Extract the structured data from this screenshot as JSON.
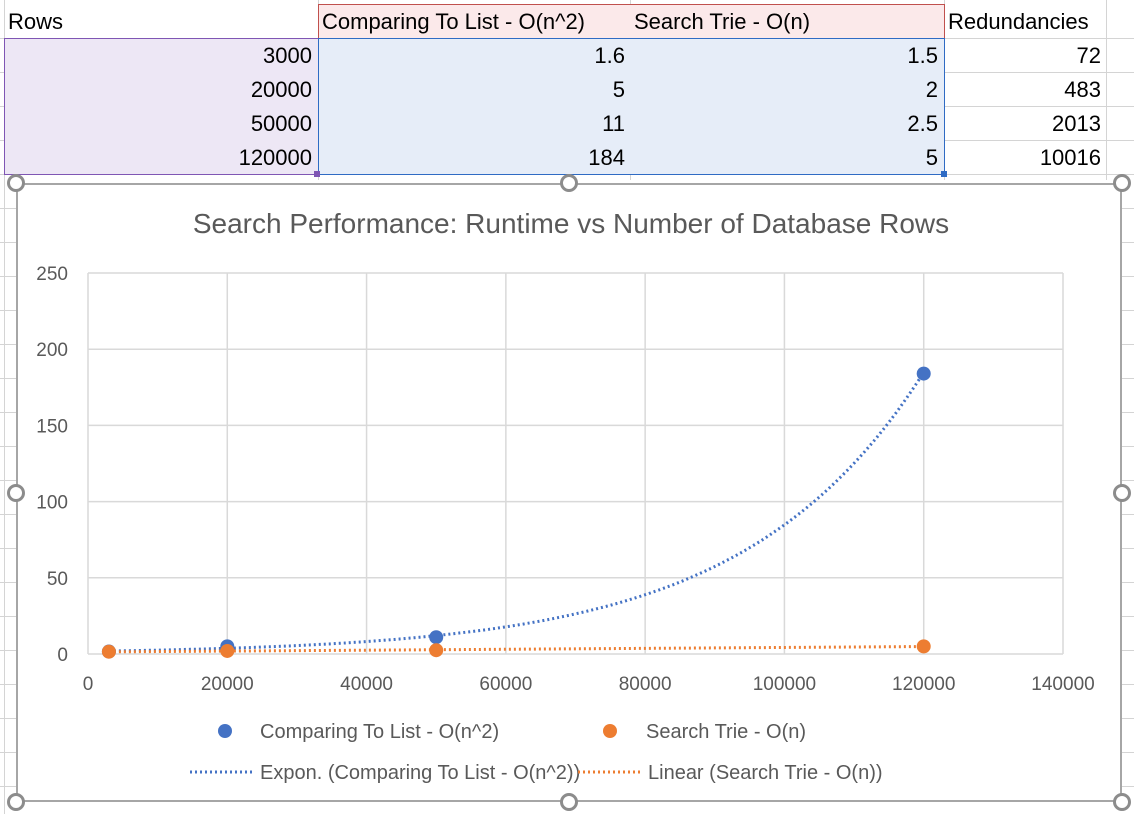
{
  "table": {
    "headers": [
      "Rows",
      "Comparing To List - O(n^2)",
      "Search Trie - O(n)",
      "Redundancies"
    ],
    "rows": [
      [
        "3000",
        "1.6",
        "1.5",
        "72"
      ],
      [
        "20000",
        "5",
        "2",
        "483"
      ],
      [
        "50000",
        "11",
        "2.5",
        "2013"
      ],
      [
        "120000",
        "184",
        "5",
        "10016"
      ]
    ]
  },
  "colors": {
    "series1": "#4472c4",
    "series2": "#ed7d31",
    "grid": "#d9d9d9",
    "text": "#595959"
  },
  "chart_data": {
    "type": "scatter",
    "title": "Search Performance: Runtime vs Number of Database Rows",
    "xlabel": "",
    "ylabel": "",
    "xlim": [
      0,
      140000
    ],
    "ylim": [
      0,
      250
    ],
    "x_ticks": [
      0,
      20000,
      40000,
      60000,
      80000,
      100000,
      120000,
      140000
    ],
    "y_ticks": [
      0,
      50,
      100,
      150,
      200,
      250
    ],
    "grid": true,
    "legend_position": "bottom",
    "series": [
      {
        "name": "Comparing To List - O(n^2)",
        "x": [
          3000,
          20000,
          50000,
          120000
        ],
        "y": [
          1.6,
          5,
          11,
          184
        ],
        "color": "#4472c4"
      },
      {
        "name": "Search Trie - O(n)",
        "x": [
          3000,
          20000,
          50000,
          120000
        ],
        "y": [
          1.5,
          2,
          2.5,
          5
        ],
        "color": "#ed7d31"
      }
    ],
    "trendlines": [
      {
        "name": "Expon. (Comparing To List - O(n^2))",
        "kind": "exponential",
        "series": "Comparing To List - O(n^2)",
        "color": "#4472c4",
        "style": "dotted"
      },
      {
        "name": "Linear (Search Trie - O(n))",
        "kind": "linear",
        "series": "Search Trie - O(n)",
        "color": "#ed7d31",
        "style": "dotted"
      }
    ]
  }
}
